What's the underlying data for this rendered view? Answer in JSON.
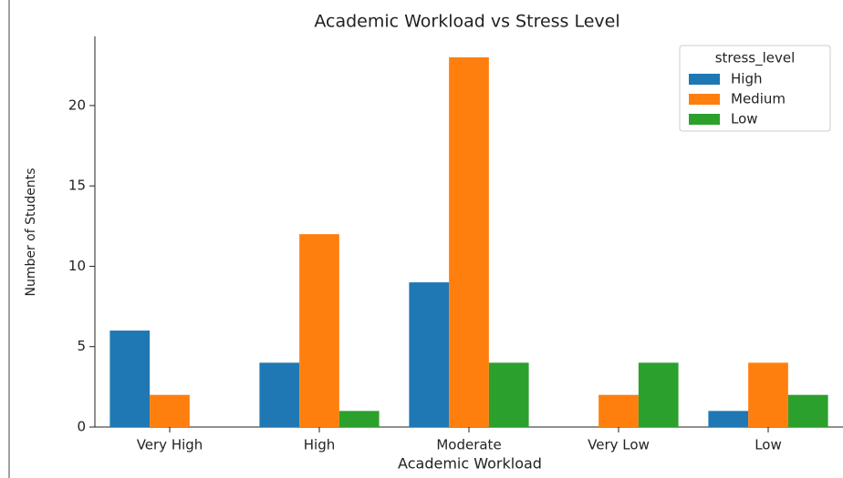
{
  "chart_data": {
    "type": "bar",
    "title": "Academic Workload vs Stress Level",
    "xlabel": "Academic Workload",
    "ylabel": "Number of Students",
    "categories": [
      "Very High",
      "High",
      "Moderate",
      "Very Low",
      "Low"
    ],
    "series": [
      {
        "name": "High",
        "color": "#1f77b4",
        "values": [
          6,
          4,
          9,
          0,
          1
        ]
      },
      {
        "name": "Medium",
        "color": "#ff7f0e",
        "values": [
          2,
          12,
          23,
          2,
          4
        ]
      },
      {
        "name": "Low",
        "color": "#2ca02c",
        "values": [
          0,
          1,
          4,
          4,
          2
        ]
      }
    ],
    "legend_title": "stress_level",
    "legend": "upper right",
    "ylim": [
      0,
      24.3
    ],
    "yticks": [
      0,
      5,
      10,
      15,
      20
    ]
  }
}
